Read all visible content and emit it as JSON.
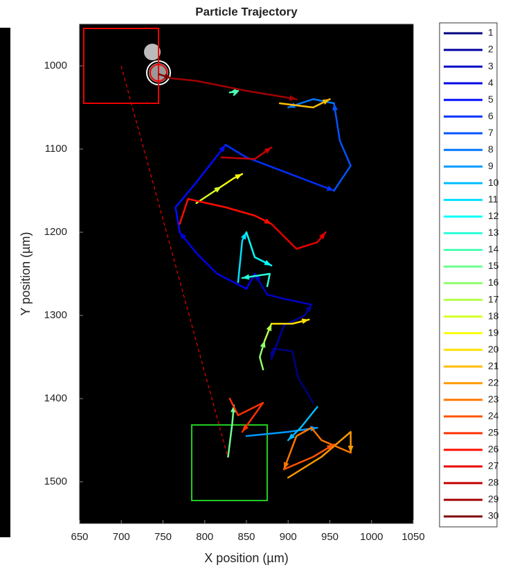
{
  "chart_data": {
    "type": "line",
    "title": "Particle Trajectory",
    "x_label": "X position (µm)",
    "y_label": "Y position (µm)",
    "xlim": [
      650,
      1050
    ],
    "xticks": [
      650,
      700,
      750,
      800,
      850,
      900,
      950,
      1000,
      1050
    ],
    "ylim": [
      950,
      1550
    ],
    "yticks": [
      1000,
      1100,
      1200,
      1300,
      1400,
      1500
    ],
    "y_reverse": true,
    "grid": false,
    "legend": "outside-right",
    "series": [
      {
        "name": "1",
        "color": "#000080",
        "x": [
          930,
          912,
          905,
          882,
          880
        ],
        "values": [
          1405,
          1375,
          1343,
          1340,
          1352
        ]
      },
      {
        "name": "2",
        "color": "#0000a3",
        "x": [
          880,
          895,
          920,
          928
        ],
        "values": [
          1352,
          1312,
          1300,
          1287
        ]
      },
      {
        "name": "3",
        "color": "#0000c6",
        "x": [
          928,
          895,
          875,
          860
        ],
        "values": [
          1287,
          1280,
          1275,
          1250
        ]
      },
      {
        "name": "4",
        "color": "#0000e9",
        "x": [
          860,
          850,
          815,
          790,
          770
        ],
        "values": [
          1250,
          1268,
          1250,
          1225,
          1200
        ]
      },
      {
        "name": "5",
        "color": "#000dff",
        "x": [
          770,
          765,
          790,
          825
        ],
        "values": [
          1200,
          1170,
          1140,
          1095
        ]
      },
      {
        "name": "6",
        "color": "#0030ff",
        "x": [
          825,
          850,
          955
        ],
        "values": [
          1095,
          1110,
          1150
        ]
      },
      {
        "name": "7",
        "color": "#0054ff",
        "x": [
          955,
          975,
          962,
          955
        ],
        "values": [
          1150,
          1120,
          1090,
          1045
        ]
      },
      {
        "name": "8",
        "color": "#0077ff",
        "x": [
          955,
          930,
          900
        ],
        "values": [
          1045,
          1040,
          1050
        ]
      },
      {
        "name": "9",
        "color": "#009aff",
        "x": [
          850,
          900,
          935
        ],
        "values": [
          1445,
          1440,
          1435
        ]
      },
      {
        "name": "10",
        "color": "#00bdff",
        "x": [
          935,
          915,
          900
        ],
        "values": [
          1410,
          1435,
          1450
        ]
      },
      {
        "name": "11",
        "color": "#00e0ff",
        "x": [
          840,
          845,
          850
        ],
        "values": [
          1260,
          1210,
          1200
        ]
      },
      {
        "name": "12",
        "color": "#04fffb",
        "x": [
          850,
          860,
          880
        ],
        "values": [
          1200,
          1230,
          1240
        ]
      },
      {
        "name": "13",
        "color": "#28ffd7",
        "x": [
          875,
          878,
          845
        ],
        "values": [
          1265,
          1250,
          1255
        ]
      },
      {
        "name": "14",
        "color": "#4bffb4",
        "x": [
          835,
          840,
          830
        ],
        "values": [
          1035,
          1030,
          1032
        ]
      },
      {
        "name": "15",
        "color": "#6eff91",
        "x": [
          828,
          833,
          835
        ],
        "values": [
          1470,
          1430,
          1408
        ]
      },
      {
        "name": "16",
        "color": "#91ff6e",
        "x": [
          870,
          866,
          872
        ],
        "values": [
          1365,
          1350,
          1330
        ]
      },
      {
        "name": "17",
        "color": "#b4ff4b",
        "x": [
          872,
          880
        ],
        "values": [
          1330,
          1310
        ]
      },
      {
        "name": "18",
        "color": "#d7ff28",
        "x": [
          790,
          805,
          820
        ],
        "values": [
          1165,
          1155,
          1145
        ]
      },
      {
        "name": "19",
        "color": "#fbff04",
        "x": [
          820,
          835,
          845
        ],
        "values": [
          1145,
          1135,
          1130
        ]
      },
      {
        "name": "20",
        "color": "#ffe000",
        "x": [
          880,
          905,
          925
        ],
        "values": [
          1310,
          1310,
          1305
        ]
      },
      {
        "name": "21",
        "color": "#ffbd00",
        "x": [
          890,
          930,
          950
        ],
        "values": [
          1045,
          1050,
          1040
        ]
      },
      {
        "name": "22",
        "color": "#ff9a00",
        "x": [
          900,
          940,
          975,
          975
        ],
        "values": [
          1495,
          1470,
          1440,
          1465
        ]
      },
      {
        "name": "23",
        "color": "#ff7700",
        "x": [
          975,
          940,
          928,
          910,
          895
        ],
        "values": [
          1465,
          1450,
          1435,
          1445,
          1485
        ]
      },
      {
        "name": "24",
        "color": "#ff5400",
        "x": [
          895,
          930,
          955
        ],
        "values": [
          1485,
          1470,
          1455
        ]
      },
      {
        "name": "25",
        "color": "#ff3000",
        "x": [
          830,
          840,
          870,
          845
        ],
        "values": [
          1400,
          1420,
          1405,
          1440
        ]
      },
      {
        "name": "26",
        "color": "#ff0d00",
        "x": [
          770,
          780,
          825,
          860,
          880
        ],
        "values": [
          1190,
          1160,
          1170,
          1180,
          1190
        ]
      },
      {
        "name": "27",
        "color": "#e90000",
        "x": [
          880,
          910,
          935,
          945
        ],
        "values": [
          1190,
          1220,
          1212,
          1200
        ]
      },
      {
        "name": "28",
        "color": "#c60000",
        "x": [
          820,
          860,
          880
        ],
        "values": [
          1110,
          1112,
          1098
        ]
      },
      {
        "name": "29",
        "color": "#a30000",
        "x": [
          760,
          790,
          850,
          910
        ],
        "values": [
          1015,
          1018,
          1030,
          1040
        ]
      },
      {
        "name": "30",
        "color": "#800000",
        "x": [
          745,
          760
        ],
        "values": [
          1010,
          1015
        ]
      }
    ]
  }
}
